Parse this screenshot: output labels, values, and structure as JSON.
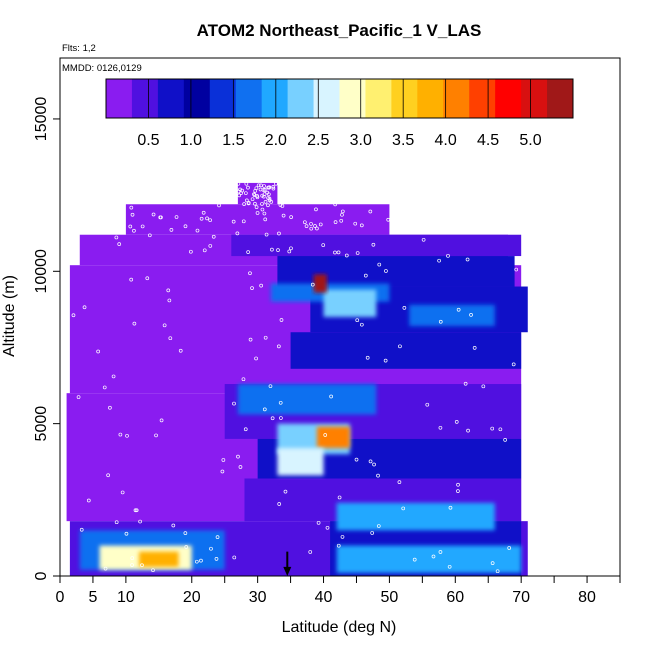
{
  "chart_data": {
    "type": "heatmap",
    "title": "ATOM2 Northeast_Pacific_1 V_LAS",
    "subtitle_flights": "Flts: 1,2",
    "subtitle_dates": "MMDD: 0126,0129",
    "xlabel": "Latitude (deg N)",
    "ylabel": "Altitude (m)",
    "xlim": [
      0,
      85
    ],
    "ylim": [
      0,
      17000
    ],
    "x_ticks": [
      0,
      5,
      10,
      20,
      30,
      40,
      50,
      60,
      70,
      80
    ],
    "x_tick_labels": [
      "0",
      "5",
      "10",
      "20",
      "30",
      "40",
      "50",
      "60",
      "70",
      "80"
    ],
    "y_ticks": [
      0,
      5000,
      10000,
      15000
    ],
    "y_tick_labels": [
      "0",
      "5000",
      "10000",
      "15000"
    ],
    "colorbar": {
      "range": [
        0,
        5.5
      ],
      "ticks": [
        0.5,
        1.0,
        1.5,
        2.0,
        2.5,
        3.0,
        3.5,
        4.0,
        4.5,
        5.0
      ],
      "tick_labels": [
        "0.5",
        "1.0",
        "1.5",
        "2.0",
        "2.5",
        "3.0",
        "3.5",
        "4.0",
        "4.5",
        "5.0"
      ],
      "colors": [
        "#8a1cf0",
        "#5010e0",
        "#1010c8",
        "#0000a0",
        "#0a30d8",
        "#1070f0",
        "#20a8ff",
        "#78d0ff",
        "#d8f4ff",
        "#ffffc8",
        "#fff070",
        "#ffd020",
        "#ffb000",
        "#ff8000",
        "#ff4000",
        "#ff0000",
        "#d81010",
        "#a01818"
      ]
    },
    "surface_marker_latitude": 34.5,
    "regions": [
      {
        "lat": [
          1.5,
          71
        ],
        "alt": [
          0,
          1800
        ],
        "value": 0.6
      },
      {
        "lat": [
          1,
          70
        ],
        "alt": [
          1800,
          6000
        ],
        "value": 0.2
      },
      {
        "lat": [
          1.5,
          70
        ],
        "alt": [
          6000,
          10200
        ],
        "value": 0.15
      },
      {
        "lat": [
          3,
          68
        ],
        "alt": [
          10200,
          11200
        ],
        "value": 0.15
      },
      {
        "lat": [
          10,
          50
        ],
        "alt": [
          11200,
          12200
        ],
        "value": 0.1
      },
      {
        "lat": [
          27,
          33
        ],
        "alt": [
          12200,
          12900
        ],
        "value": 0.1
      },
      {
        "lat": [
          26,
          70
        ],
        "alt": [
          10500,
          11200
        ],
        "value": 0.5
      },
      {
        "lat": [
          33,
          69
        ],
        "alt": [
          9500,
          10500
        ],
        "value": 0.8
      },
      {
        "lat": [
          38,
          71
        ],
        "alt": [
          8000,
          9500
        ],
        "value": 0.9
      },
      {
        "lat": [
          35,
          70
        ],
        "alt": [
          6800,
          8000
        ],
        "value": 0.7
      },
      {
        "lat": [
          25,
          70
        ],
        "alt": [
          4500,
          6300
        ],
        "value": 0.6
      },
      {
        "lat": [
          30,
          70
        ],
        "alt": [
          3200,
          4500
        ],
        "value": 0.7
      },
      {
        "lat": [
          28,
          70
        ],
        "alt": [
          1800,
          3200
        ],
        "value": 0.6
      },
      {
        "lat": [
          41,
          70
        ],
        "alt": [
          0,
          1800
        ],
        "value": 0.9
      },
      {
        "lat": [
          32,
          50
        ],
        "alt": [
          9000,
          9600
        ],
        "value": 1.6
      },
      {
        "lat": [
          40,
          48
        ],
        "alt": [
          8500,
          9400
        ],
        "value": 2.2
      },
      {
        "lat": [
          53,
          66
        ],
        "alt": [
          8200,
          8900
        ],
        "value": 1.8
      },
      {
        "lat": [
          27,
          48
        ],
        "alt": [
          5300,
          6300
        ],
        "value": 1.6
      },
      {
        "lat": [
          33,
          44
        ],
        "alt": [
          4000,
          5000
        ],
        "value": 2.4
      },
      {
        "lat": [
          39,
          44
        ],
        "alt": [
          4200,
          4900
        ],
        "value": 4.0
      },
      {
        "lat": [
          33,
          40
        ],
        "alt": [
          3300,
          4200
        ],
        "value": 2.6
      },
      {
        "lat": [
          42,
          66
        ],
        "alt": [
          1500,
          2400
        ],
        "value": 2.1
      },
      {
        "lat": [
          3,
          25
        ],
        "alt": [
          200,
          1500
        ],
        "value": 1.6
      },
      {
        "lat": [
          6,
          20
        ],
        "alt": [
          200,
          1000
        ],
        "value": 2.9
      },
      {
        "lat": [
          12,
          18
        ],
        "alt": [
          300,
          800
        ],
        "value": 3.9
      },
      {
        "lat": [
          42,
          70
        ],
        "alt": [
          100,
          1000
        ],
        "value": 2.0
      },
      {
        "lat": [
          38.5,
          40.5
        ],
        "alt": [
          9300,
          9900
        ],
        "value": 5.2
      }
    ]
  }
}
